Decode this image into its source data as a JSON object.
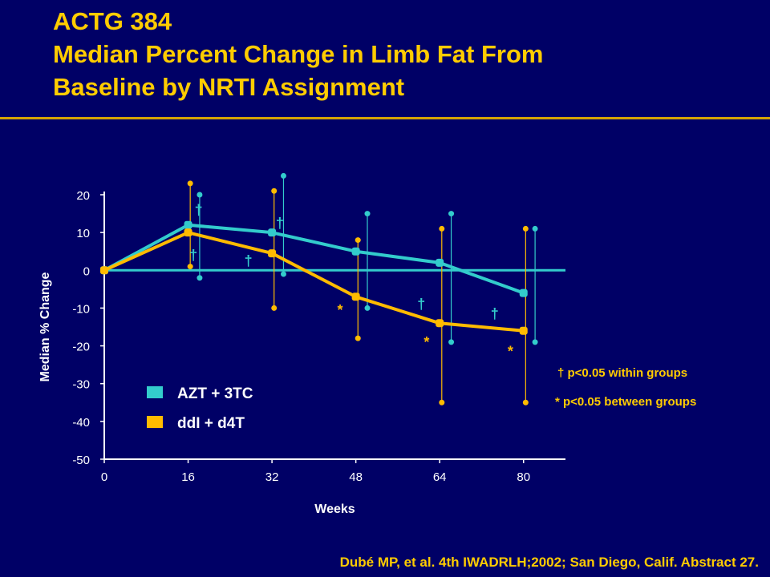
{
  "slide": {
    "title_lines": [
      "ACTG 384",
      "Median Percent Change in Limb Fat From",
      "Baseline by NRTI Assignment"
    ],
    "footnote": "Dubé MP, et al. 4th IWADRLH;2002; San Diego, Calif. Abstract 27."
  },
  "chart_data": {
    "type": "line",
    "xlabel": "Weeks",
    "ylabel": "Median % Change",
    "x": [
      0,
      16,
      32,
      48,
      64,
      80
    ],
    "xlim": [
      0,
      88
    ],
    "ylim": [
      -50,
      20
    ],
    "xticks": [
      0,
      16,
      32,
      48,
      64,
      80
    ],
    "yticks": [
      20,
      10,
      0,
      -10,
      -20,
      -30,
      -40,
      -50
    ],
    "ytick_labels": [
      "20",
      "10",
      "0",
      "-10",
      "-20",
      "-30",
      "-40",
      "-50"
    ],
    "reference_line_y": 0,
    "legend_position": "bottom-left",
    "series": [
      {
        "name": "AZT + 3TC",
        "color": "#33cccc",
        "values": [
          0,
          12,
          10,
          5,
          2,
          -6
        ],
        "error_low": [
          null,
          -2,
          -1,
          -10,
          -19,
          -19
        ],
        "error_high": [
          null,
          20,
          25,
          15,
          15,
          11
        ]
      },
      {
        "name": "ddI + d4T",
        "color": "#ffbb00",
        "values": [
          0,
          10,
          4.5,
          -7,
          -14,
          -16
        ],
        "error_low": [
          null,
          1,
          -10,
          -18,
          -35,
          -35
        ],
        "error_high": [
          null,
          23,
          21,
          8,
          11,
          11
        ]
      }
    ],
    "markers": [
      {
        "symbol": "†",
        "color": "#33cccc",
        "x": 18,
        "y": 16
      },
      {
        "symbol": "†",
        "color": "#33cccc",
        "x": 33.5,
        "y": 12.5
      },
      {
        "symbol": "†",
        "color": "#33cccc",
        "x": 17,
        "y": 4
      },
      {
        "symbol": "†",
        "color": "#33cccc",
        "x": 27.5,
        "y": 2.5
      },
      {
        "symbol": "†",
        "color": "#33cccc",
        "x": 60.5,
        "y": -9
      },
      {
        "symbol": "†",
        "color": "#33cccc",
        "x": 74.5,
        "y": -11.5
      },
      {
        "symbol": "*",
        "color": "#ffbb00",
        "x": 45,
        "y": -10.5
      },
      {
        "symbol": "*",
        "color": "#ffbb00",
        "x": 61.5,
        "y": -19
      },
      {
        "symbol": "*",
        "color": "#ffbb00",
        "x": 77.5,
        "y": -21.5
      }
    ],
    "annotations": [
      {
        "text": "† p<0.05 within groups",
        "color": "#ffcc00"
      },
      {
        "text": "* p<0.05 between groups",
        "color": "#ffcc00"
      }
    ]
  }
}
